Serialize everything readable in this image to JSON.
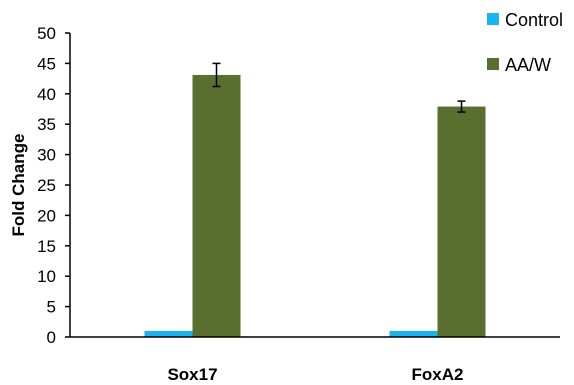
{
  "chart_data": {
    "type": "bar",
    "categories": [
      "Sox17",
      "FoxA2"
    ],
    "series": [
      {
        "name": "Control",
        "values": [
          1,
          1
        ],
        "errors": [
          0,
          0
        ],
        "color": "#1ab4f0"
      },
      {
        "name": "AA/W",
        "values": [
          43.1,
          37.9
        ],
        "errors": [
          1.9,
          0.9
        ],
        "color": "#5a6e2f"
      }
    ],
    "xlabel": "",
    "ylabel": "Fold Change",
    "ylim": [
      0,
      50
    ],
    "yticks": [
      0,
      5,
      10,
      15,
      20,
      25,
      30,
      35,
      40,
      45,
      50
    ],
    "grid": false,
    "legend_position": "top-right"
  }
}
